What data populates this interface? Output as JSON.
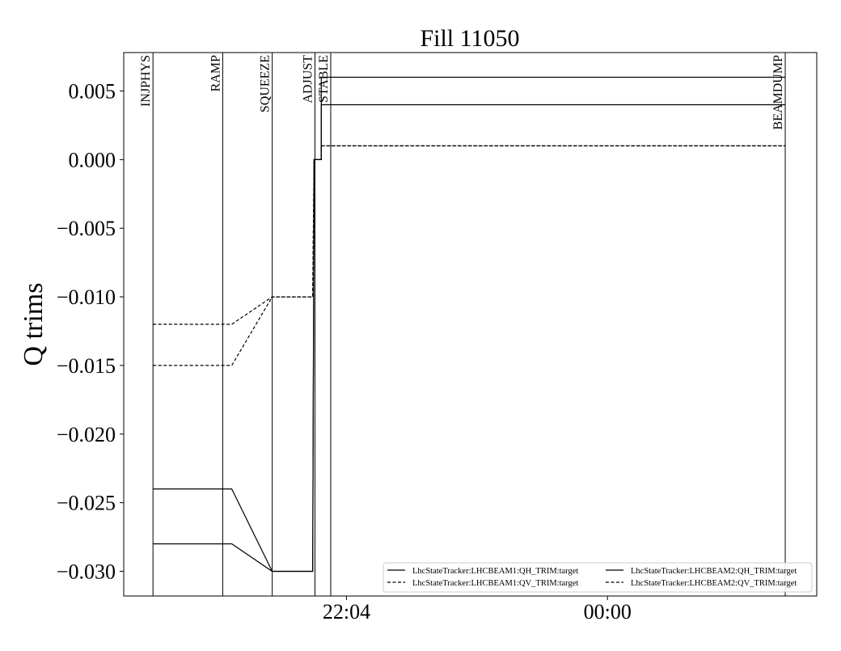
{
  "chart_data": {
    "type": "line",
    "title": "Fill 11050",
    "xlabel": "",
    "ylabel": "Q trims",
    "xlim": [
      "20:25",
      "01:33"
    ],
    "ylim": [
      -0.0318,
      0.0078
    ],
    "grid": false,
    "legend_placement": "lower-right",
    "x_ticks": [
      "22:04",
      "00:00"
    ],
    "y_ticks": [
      "0.005",
      "0.000",
      "−0.005",
      "−0.010",
      "−0.015",
      "−0.020",
      "−0.025",
      "−0.030"
    ],
    "y_tick_values": [
      0.005,
      0.0,
      -0.005,
      -0.01,
      -0.015,
      -0.02,
      -0.025,
      -0.03
    ],
    "beam_modes": [
      {
        "label": "INJPHYS",
        "time": "20:38"
      },
      {
        "label": "RAMP",
        "time": "21:09"
      },
      {
        "label": "SQUEEZE",
        "time": "21:31"
      },
      {
        "label": "ADJUST",
        "time": "21:50"
      },
      {
        "label": "STABLE",
        "time": "21:57"
      },
      {
        "label": "BEAMDUMP",
        "time": "01:19"
      }
    ],
    "series": [
      {
        "name": "LhcStateTracker:LHCBEAM1:QH_TRIM:target",
        "style": "solid",
        "x": [
          "20:38",
          "21:13",
          "21:31",
          "21:49",
          "21:49.6",
          "21:52.8",
          "21:52.8",
          "01:19"
        ],
        "y": [
          -0.024,
          -0.024,
          -0.03,
          -0.03,
          0.0,
          0.0,
          0.006,
          0.006
        ]
      },
      {
        "name": "LhcStateTracker:LHCBEAM1:QV_TRIM:target",
        "style": "dashed",
        "x": [
          "20:38",
          "21:13",
          "21:31",
          "21:49",
          "21:49.6",
          "21:52.8",
          "21:52.8",
          "01:19"
        ],
        "y": [
          -0.012,
          -0.012,
          -0.01,
          -0.01,
          0.0,
          0.0,
          0.001,
          0.001
        ]
      },
      {
        "name": "LhcStateTracker:LHCBEAM2:QH_TRIM:target",
        "style": "solid",
        "x": [
          "20:38",
          "21:13",
          "21:31",
          "21:49",
          "21:49.6",
          "21:52.8",
          "21:52.8",
          "01:19"
        ],
        "y": [
          -0.028,
          -0.028,
          -0.03,
          -0.03,
          0.0,
          0.0,
          0.004,
          0.004
        ]
      },
      {
        "name": "LhcStateTracker:LHCBEAM2:QV_TRIM:target",
        "style": "dashed",
        "x": [
          "20:38",
          "21:13",
          "21:31",
          "21:49",
          "21:49.6",
          "21:52.8",
          "21:52.8",
          "01:19"
        ],
        "y": [
          -0.015,
          -0.015,
          -0.01,
          -0.01,
          0.0,
          0.0,
          0.001,
          0.001
        ]
      }
    ]
  }
}
